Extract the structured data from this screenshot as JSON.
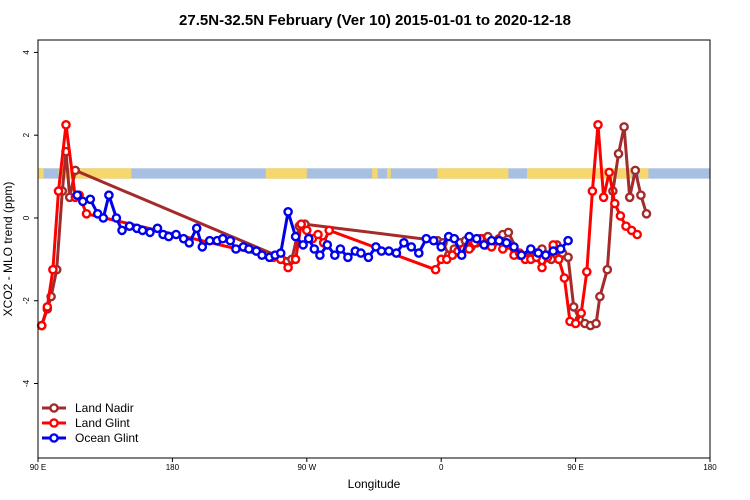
{
  "chart_data": {
    "type": "line",
    "title": "27.5N-32.5N February (Ver 10)   2015-01-01 to 2020-12-18",
    "xlabel": "Longitude",
    "ylabel": "XCO2 - MLO trend (ppm)",
    "xlim": [
      90,
      450
    ],
    "ylim": [
      -5.8,
      4.3
    ],
    "x_ticks": [
      {
        "value": 90,
        "label": "90 E"
      },
      {
        "value": 162,
        "label": "180"
      },
      {
        "value": 234,
        "label": "90 W"
      },
      {
        "value": 306,
        "label": "0"
      },
      {
        "value": 378,
        "label": "90 E"
      },
      {
        "value": 450,
        "label": "180"
      }
    ],
    "y_ticks": [
      -4,
      -2,
      0,
      2,
      4
    ],
    "grid": false,
    "legend_position": "bottom-left",
    "surface_band": {
      "y_range": [
        0.95,
        1.2
      ],
      "land_color": "#f5d76e",
      "ocean_color": "#a7bfe0",
      "land_ranges": [
        [
          90,
          93
        ],
        [
          101,
          140
        ],
        [
          212,
          234
        ],
        [
          269,
          272
        ],
        [
          277,
          279
        ],
        [
          304,
          342
        ],
        [
          352,
          408
        ],
        [
          412,
          417
        ]
      ]
    },
    "series": [
      {
        "name": "Land Nadir",
        "color": "#a52a2a",
        "x": [
          92,
          95,
          97,
          100,
          103,
          105,
          107,
          110,
          220,
          226,
          230,
          233,
          304,
          307,
          310,
          313,
          316,
          319,
          322,
          325,
          328,
          331,
          334,
          337,
          339,
          342,
          348,
          351,
          354,
          357,
          360,
          363,
          365,
          366,
          368,
          371,
          374,
          377,
          380,
          383,
          386,
          389,
          391,
          395,
          398,
          401,
          404,
          407,
          410,
          413,
          416
        ],
        "y": [
          -2.6,
          -2.2,
          -1.9,
          -1.25,
          0.65,
          1.6,
          0.5,
          1.15,
          -0.95,
          -1.0,
          -0.2,
          -0.15,
          -0.55,
          -0.6,
          -0.9,
          -0.75,
          -0.6,
          -0.55,
          -0.7,
          -0.6,
          -0.5,
          -0.45,
          -0.6,
          -0.5,
          -0.4,
          -0.35,
          -0.9,
          -0.95,
          -0.8,
          -0.85,
          -0.75,
          -0.9,
          -1.0,
          -0.7,
          -0.65,
          -0.85,
          -0.95,
          -2.15,
          -2.45,
          -2.55,
          -2.6,
          -2.55,
          -1.9,
          -1.25,
          0.65,
          1.55,
          2.2,
          0.5,
          1.15,
          0.55,
          0.1
        ]
      },
      {
        "name": "Land Glint",
        "color": "#ff0000",
        "x": [
          92,
          95,
          98,
          101,
          105,
          110,
          112,
          116,
          216,
          220,
          224,
          228,
          231,
          234,
          237,
          240,
          243,
          246,
          303,
          306,
          309,
          312,
          315,
          318,
          321,
          324,
          327,
          330,
          333,
          336,
          339,
          342,
          345,
          348,
          351,
          354,
          357,
          360,
          363,
          366,
          369,
          372,
          375,
          378,
          381,
          384,
          387,
          390,
          393,
          396,
          399,
          402,
          405,
          408,
          411
        ],
        "y": [
          -2.6,
          -2.15,
          -1.25,
          0.65,
          2.25,
          0.5,
          0.55,
          0.1,
          -0.95,
          -1.0,
          -1.2,
          -1.0,
          -0.15,
          -0.3,
          -0.5,
          -0.4,
          -0.6,
          -0.3,
          -1.25,
          -1.0,
          -1.0,
          -0.9,
          -0.8,
          -0.75,
          -0.75,
          -0.6,
          -0.5,
          -0.65,
          -0.7,
          -0.55,
          -0.75,
          -0.65,
          -0.9,
          -0.85,
          -1.0,
          -1.0,
          -0.95,
          -1.2,
          -0.95,
          -0.65,
          -1.0,
          -1.45,
          -2.5,
          -2.55,
          -2.3,
          -1.3,
          0.65,
          2.25,
          0.5,
          1.1,
          0.35,
          0.05,
          -0.2,
          -0.3,
          -0.4
        ]
      },
      {
        "name": "Ocean Glint",
        "color": "#0000ee",
        "x": [
          111,
          114,
          118,
          122,
          125,
          128,
          132,
          135,
          139,
          143,
          146,
          150,
          154,
          157,
          160,
          164,
          168,
          171,
          175,
          178,
          182,
          186,
          189,
          193,
          196,
          200,
          203,
          207,
          210,
          214,
          217,
          220,
          224,
          228,
          232,
          235,
          238,
          241,
          245,
          249,
          252,
          256,
          260,
          263,
          267,
          271,
          274,
          278,
          282,
          286,
          290,
          294,
          298,
          302,
          306,
          310,
          313,
          317,
          321,
          325,
          329,
          333,
          337,
          341,
          345,
          349,
          354,
          358,
          362,
          366,
          370,
          374
        ],
        "y": [
          0.55,
          0.4,
          0.45,
          0.1,
          0.0,
          0.55,
          0.0,
          -0.3,
          -0.2,
          -0.25,
          -0.3,
          -0.35,
          -0.25,
          -0.4,
          -0.45,
          -0.4,
          -0.5,
          -0.6,
          -0.25,
          -0.7,
          -0.55,
          -0.55,
          -0.5,
          -0.55,
          -0.75,
          -0.7,
          -0.75,
          -0.8,
          -0.9,
          -0.95,
          -0.9,
          -0.85,
          0.15,
          -0.45,
          -0.65,
          -0.5,
          -0.75,
          -0.9,
          -0.65,
          -0.9,
          -0.75,
          -0.95,
          -0.8,
          -0.85,
          -0.95,
          -0.7,
          -0.8,
          -0.8,
          -0.85,
          -0.6,
          -0.7,
          -0.85,
          -0.5,
          -0.55,
          -0.7,
          -0.45,
          -0.5,
          -0.9,
          -0.45,
          -0.5,
          -0.65,
          -0.55,
          -0.55,
          -0.6,
          -0.7,
          -0.9,
          -0.75,
          -0.85,
          -0.9,
          -0.8,
          -0.75,
          -0.55
        ]
      }
    ]
  }
}
